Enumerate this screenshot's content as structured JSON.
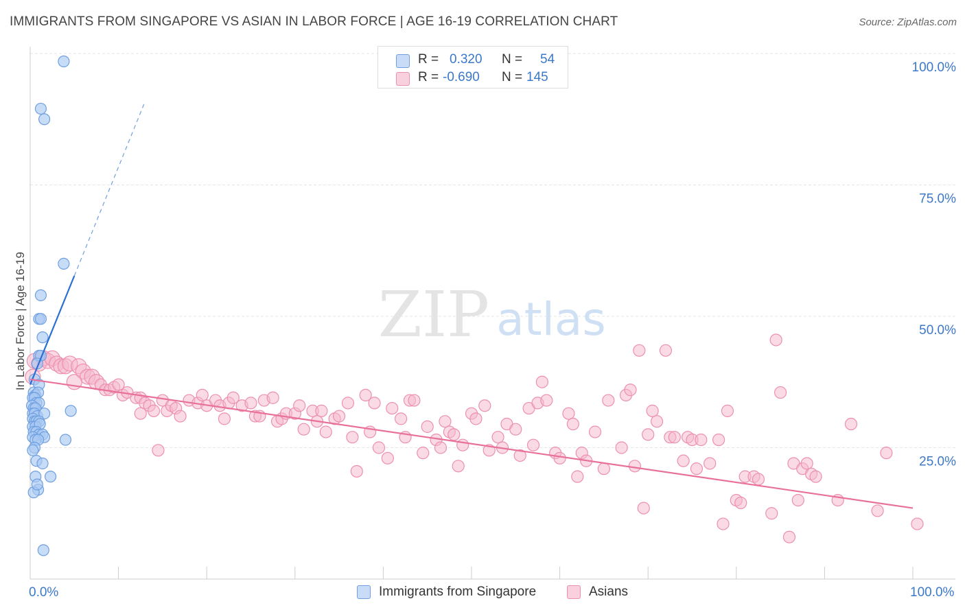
{
  "title": "IMMIGRANTS FROM SINGAPORE VS ASIAN IN LABOR FORCE | AGE 16-19 CORRELATION CHART",
  "source": "Source: ZipAtlas.com",
  "watermark": {
    "zip": "ZIP",
    "atlas": "atlas"
  },
  "colors": {
    "blue_fill": "#a9c9f2",
    "blue_stroke": "#6f9fe0",
    "blue_line": "#2b6ed4",
    "pink_fill": "#f6b8cc",
    "pink_stroke": "#ec8fb0",
    "pink_line": "#e8709a",
    "axis_text": "#3b78c9",
    "grid": "#e6e6e6"
  },
  "legend_stats": [
    {
      "r_label": "R =",
      "r_value": "0.320",
      "n_label": "N =",
      "n_value": "54",
      "color": "blue"
    },
    {
      "r_label": "R =",
      "r_value": "-0.690",
      "n_label": "N =",
      "n_value": "145",
      "color": "pink"
    }
  ],
  "legend_bottom": [
    {
      "label": "Immigrants from Singapore",
      "color": "blue"
    },
    {
      "label": "Asians",
      "color": "pink"
    }
  ],
  "chart_data": {
    "type": "scatter",
    "title": "IMMIGRANTS FROM SINGAPORE VS ASIAN IN LABOR FORCE | AGE 16-19 CORRELATION CHART",
    "xlabel": "",
    "ylabel": "In Labor Force | Age 16-19",
    "xlim": [
      0,
      100
    ],
    "ylim": [
      0,
      100
    ],
    "x_tick_labels": [
      "0.0%",
      "100.0%"
    ],
    "y_ticks": [
      25,
      50,
      75,
      100
    ],
    "y_tick_labels": [
      "25.0%",
      "50.0%",
      "75.0%",
      "100.0%"
    ],
    "grid": true,
    "series": [
      {
        "name": "Immigrants from Singapore",
        "color": "blue",
        "trend": {
          "x0": 0,
          "y0": 37.0,
          "x1": 5,
          "y1": 57.7,
          "dash_to_x": 13
        },
        "points": [
          [
            3.8,
            98.5
          ],
          [
            1.2,
            89.5
          ],
          [
            1.6,
            87.5
          ],
          [
            3.8,
            60.0
          ],
          [
            1.2,
            54.0
          ],
          [
            1.0,
            49.5
          ],
          [
            1.2,
            49.5
          ],
          [
            1.4,
            46.0
          ],
          [
            1.0,
            42.5
          ],
          [
            1.2,
            42.5
          ],
          [
            0.8,
            41.0
          ],
          [
            0.5,
            38.0
          ],
          [
            1.0,
            37.0
          ],
          [
            0.4,
            35.5
          ],
          [
            0.6,
            35.0
          ],
          [
            0.9,
            35.5
          ],
          [
            0.3,
            34.5
          ],
          [
            0.5,
            34.5
          ],
          [
            0.7,
            33.5
          ],
          [
            1.0,
            33.5
          ],
          [
            0.2,
            33.0
          ],
          [
            0.4,
            32.5
          ],
          [
            0.6,
            32.5
          ],
          [
            0.3,
            31.5
          ],
          [
            0.5,
            31.5
          ],
          [
            0.8,
            31.0
          ],
          [
            1.6,
            31.5
          ],
          [
            4.6,
            32.0
          ],
          [
            0.3,
            30.5
          ],
          [
            0.5,
            30.0
          ],
          [
            0.7,
            30.0
          ],
          [
            1.0,
            30.0
          ],
          [
            0.3,
            29.0
          ],
          [
            0.6,
            29.0
          ],
          [
            1.1,
            29.5
          ],
          [
            0.4,
            28.0
          ],
          [
            0.7,
            28.0
          ],
          [
            1.0,
            27.5
          ],
          [
            1.4,
            27.5
          ],
          [
            1.6,
            27.0
          ],
          [
            0.3,
            27.0
          ],
          [
            0.6,
            26.5
          ],
          [
            0.9,
            26.5
          ],
          [
            4.0,
            26.5
          ],
          [
            0.5,
            25.0
          ],
          [
            0.3,
            24.5
          ],
          [
            0.7,
            22.5
          ],
          [
            1.4,
            22.0
          ],
          [
            0.6,
            19.5
          ],
          [
            2.3,
            19.5
          ],
          [
            0.9,
            17.0
          ],
          [
            0.4,
            16.5
          ],
          [
            1.5,
            5.5
          ],
          [
            0.8,
            18.0
          ]
        ]
      },
      {
        "name": "Asians",
        "color": "pink",
        "trend": {
          "x0": 0,
          "y0": 38.0,
          "x1": 100,
          "y1": 13.5
        },
        "points": [
          [
            0.5,
            41.5
          ],
          [
            1.0,
            41.0
          ],
          [
            1.5,
            42.0
          ],
          [
            2.0,
            41.5
          ],
          [
            2.5,
            42.0
          ],
          [
            3.0,
            41.0
          ],
          [
            3.5,
            40.5
          ],
          [
            4.0,
            40.5
          ],
          [
            4.5,
            41.0
          ],
          [
            5.5,
            40.5
          ],
          [
            6.0,
            39.5
          ],
          [
            6.5,
            38.5
          ],
          [
            7.0,
            38.5
          ],
          [
            7.5,
            37.5
          ],
          [
            8.0,
            37.0
          ],
          [
            8.5,
            36.0
          ],
          [
            9.0,
            36.0
          ],
          [
            9.5,
            36.5
          ],
          [
            10.0,
            37.0
          ],
          [
            10.5,
            35.0
          ],
          [
            11.0,
            35.5
          ],
          [
            12.0,
            34.5
          ],
          [
            12.5,
            34.5
          ],
          [
            13.0,
            33.5
          ],
          [
            13.5,
            33.0
          ],
          [
            14.0,
            32.0
          ],
          [
            15.0,
            34.0
          ],
          [
            15.5,
            32.0
          ],
          [
            16.0,
            33.0
          ],
          [
            16.5,
            32.5
          ],
          [
            17.0,
            31.0
          ],
          [
            18.0,
            34.0
          ],
          [
            19.0,
            33.5
          ],
          [
            19.5,
            35.0
          ],
          [
            20.0,
            33.0
          ],
          [
            21.0,
            34.0
          ],
          [
            21.5,
            33.0
          ],
          [
            22.0,
            30.5
          ],
          [
            22.5,
            33.5
          ],
          [
            23.0,
            34.5
          ],
          [
            24.0,
            33.0
          ],
          [
            25.0,
            33.5
          ],
          [
            25.5,
            31.0
          ],
          [
            26.5,
            34.0
          ],
          [
            27.5,
            34.5
          ],
          [
            28.0,
            30.0
          ],
          [
            28.5,
            30.5
          ],
          [
            29.0,
            31.5
          ],
          [
            30.0,
            31.5
          ],
          [
            30.5,
            33.0
          ],
          [
            31.0,
            28.5
          ],
          [
            32.0,
            32.0
          ],
          [
            32.5,
            30.0
          ],
          [
            33.0,
            32.0
          ],
          [
            33.5,
            28.0
          ],
          [
            34.5,
            30.5
          ],
          [
            35.0,
            31.0
          ],
          [
            36.0,
            33.5
          ],
          [
            36.5,
            27.0
          ],
          [
            37.0,
            20.5
          ],
          [
            38.0,
            35.0
          ],
          [
            38.5,
            28.0
          ],
          [
            39.0,
            33.5
          ],
          [
            39.5,
            25.0
          ],
          [
            40.5,
            23.0
          ],
          [
            41.0,
            32.5
          ],
          [
            42.0,
            30.5
          ],
          [
            42.5,
            27.0
          ],
          [
            43.0,
            34.0
          ],
          [
            43.5,
            34.0
          ],
          [
            44.5,
            24.0
          ],
          [
            45.0,
            29.0
          ],
          [
            46.0,
            26.5
          ],
          [
            46.5,
            25.0
          ],
          [
            47.0,
            30.0
          ],
          [
            47.5,
            28.0
          ],
          [
            48.0,
            27.5
          ],
          [
            48.5,
            21.5
          ],
          [
            49.0,
            25.5
          ],
          [
            50.0,
            31.5
          ],
          [
            50.5,
            30.5
          ],
          [
            51.5,
            33.0
          ],
          [
            52.0,
            24.5
          ],
          [
            53.0,
            27.0
          ],
          [
            53.5,
            25.0
          ],
          [
            54.0,
            29.5
          ],
          [
            55.0,
            28.5
          ],
          [
            55.5,
            23.5
          ],
          [
            56.5,
            32.5
          ],
          [
            57.0,
            25.5
          ],
          [
            57.5,
            33.5
          ],
          [
            58.0,
            37.5
          ],
          [
            58.5,
            34.0
          ],
          [
            59.5,
            24.0
          ],
          [
            60.0,
            23.0
          ],
          [
            61.0,
            31.5
          ],
          [
            61.5,
            29.5
          ],
          [
            62.0,
            19.5
          ],
          [
            62.5,
            24.0
          ],
          [
            63.0,
            22.5
          ],
          [
            64.0,
            28.0
          ],
          [
            65.0,
            21.0
          ],
          [
            65.5,
            34.0
          ],
          [
            67.0,
            25.0
          ],
          [
            67.5,
            35.0
          ],
          [
            68.0,
            36.0
          ],
          [
            68.5,
            21.5
          ],
          [
            69.0,
            43.5
          ],
          [
            69.5,
            13.5
          ],
          [
            70.0,
            27.5
          ],
          [
            70.5,
            32.0
          ],
          [
            71.0,
            30.0
          ],
          [
            72.0,
            43.5
          ],
          [
            72.5,
            27.0
          ],
          [
            73.0,
            27.0
          ],
          [
            74.0,
            22.5
          ],
          [
            74.5,
            27.0
          ],
          [
            75.0,
            26.5
          ],
          [
            75.5,
            21.0
          ],
          [
            76.0,
            26.5
          ],
          [
            77.0,
            22.0
          ],
          [
            78.0,
            26.5
          ],
          [
            78.5,
            10.5
          ],
          [
            79.0,
            32.0
          ],
          [
            80.0,
            15.0
          ],
          [
            80.5,
            14.5
          ],
          [
            81.0,
            19.5
          ],
          [
            82.0,
            19.5
          ],
          [
            82.5,
            19.0
          ],
          [
            84.0,
            12.5
          ],
          [
            84.5,
            45.5
          ],
          [
            85.0,
            35.5
          ],
          [
            86.0,
            8.0
          ],
          [
            86.5,
            22.0
          ],
          [
            87.0,
            15.0
          ],
          [
            87.5,
            21.0
          ],
          [
            88.0,
            22.0
          ],
          [
            88.5,
            20.0
          ],
          [
            89.0,
            19.5
          ],
          [
            91.5,
            15.0
          ],
          [
            93.0,
            29.5
          ],
          [
            96.0,
            13.0
          ],
          [
            97.0,
            24.0
          ],
          [
            100.5,
            10.5
          ],
          [
            14.5,
            24.5
          ],
          [
            12.5,
            31.5
          ],
          [
            26.0,
            31.0
          ],
          [
            0.3,
            38.5
          ],
          [
            5.0,
            37.5
          ]
        ]
      }
    ]
  }
}
